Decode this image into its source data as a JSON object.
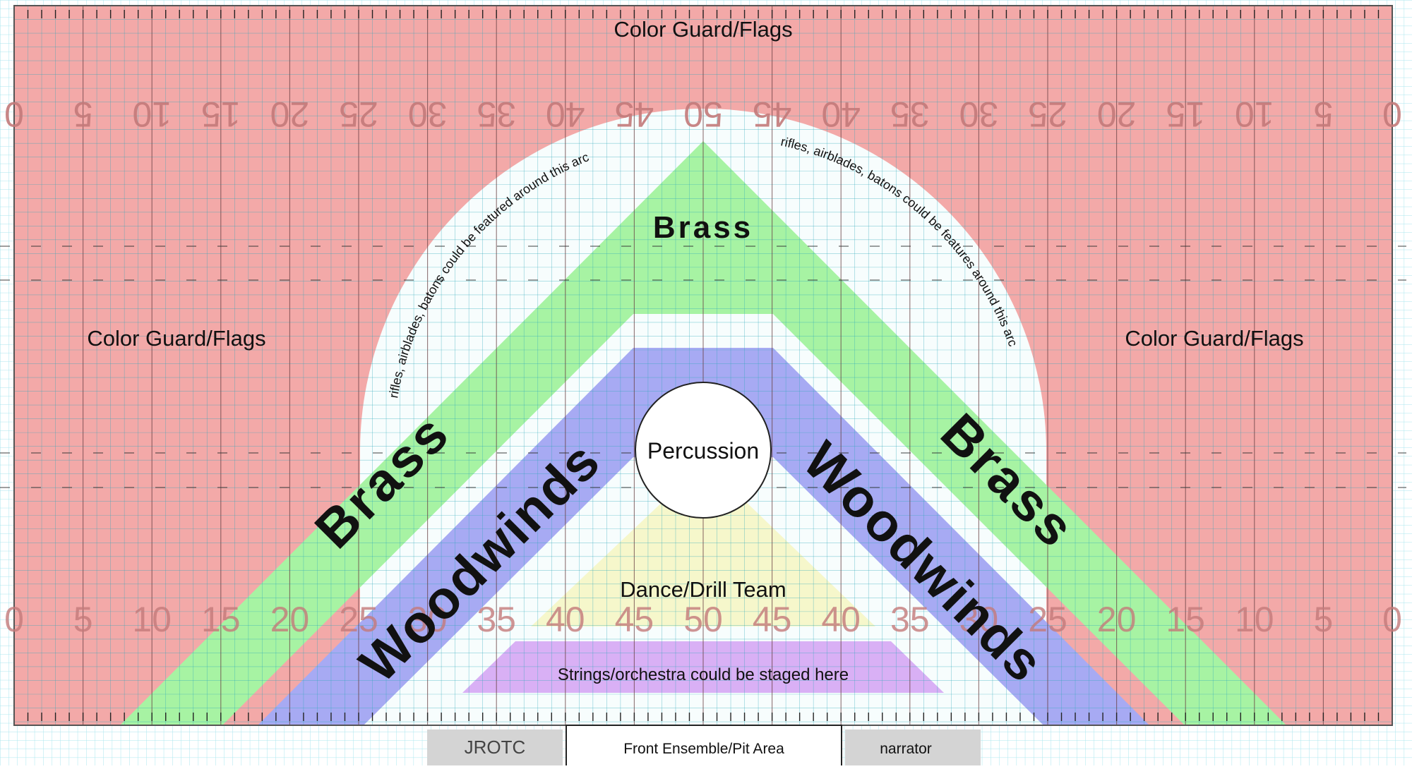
{
  "colors": {
    "field_red": "#f3a9a8",
    "field_white": "#f7fdfd",
    "brass_green": "#a7f3a3",
    "woodwinds_blue": "#a7aaf3",
    "dance_yellow": "#f6f7c8",
    "strings_purple": "#d9b0f5",
    "grid_fine": "#9ee4ec",
    "grid_line": "#2aa7b9",
    "yard_line": "#7a2a2a",
    "box_grey": "#d4d4d4"
  },
  "sections": {
    "color_guard_top": "Color Guard/Flags",
    "color_guard_left": "Color Guard/Flags",
    "color_guard_right": "Color Guard/Flags",
    "brass_top": "Brass",
    "brass_left": "Brass",
    "brass_right": "Brass",
    "woodwinds_left": "Woodwinds",
    "woodwinds_right": "Woodwinds",
    "percussion": "Percussion",
    "dance": "Dance/Drill Team",
    "strings": "Strings/orchestra could be staged here"
  },
  "arc_notes": {
    "left": "rifles, airblades, batons could be featured around this arc",
    "right": "rifles, airblades, batons could be features around this arc"
  },
  "yard_numbers": {
    "top": [
      "0",
      "5",
      "10",
      "15",
      "20",
      "25",
      "30",
      "35",
      "40",
      "45",
      "50",
      "45",
      "40",
      "35",
      "30",
      "25",
      "20",
      "15",
      "10",
      "5",
      "0"
    ],
    "bottom": [
      "0",
      "5",
      "10",
      "15",
      "20",
      "25",
      "30",
      "35",
      "40",
      "45",
      "50",
      "45",
      "40",
      "35",
      "30",
      "25",
      "20",
      "15",
      "10",
      "5",
      "0"
    ]
  },
  "bottom_boxes": {
    "jrotc": "JROTC",
    "front_ensemble": "Front Ensemble/Pit Area",
    "narrator": "narrator"
  }
}
